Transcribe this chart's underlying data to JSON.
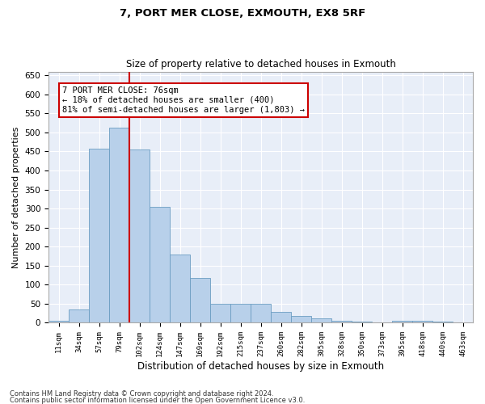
{
  "title1": "7, PORT MER CLOSE, EXMOUTH, EX8 5RF",
  "title2": "Size of property relative to detached houses in Exmouth",
  "xlabel": "Distribution of detached houses by size in Exmouth",
  "ylabel": "Number of detached properties",
  "categories": [
    "11sqm",
    "34sqm",
    "57sqm",
    "79sqm",
    "102sqm",
    "124sqm",
    "147sqm",
    "169sqm",
    "192sqm",
    "215sqm",
    "237sqm",
    "260sqm",
    "282sqm",
    "305sqm",
    "328sqm",
    "350sqm",
    "373sqm",
    "395sqm",
    "418sqm",
    "440sqm",
    "463sqm"
  ],
  "values": [
    5,
    35,
    458,
    512,
    455,
    305,
    180,
    118,
    50,
    50,
    50,
    28,
    18,
    12,
    5,
    3,
    0,
    5,
    5,
    3,
    2
  ],
  "bar_color": "#b8d0ea",
  "bar_edge_color": "#6b9dc2",
  "bg_color": "#e8eef8",
  "grid_color": "#ffffff",
  "vline_x_index": 3,
  "vline_color": "#cc0000",
  "annotation_text": "7 PORT MER CLOSE: 76sqm\n← 18% of detached houses are smaller (400)\n81% of semi-detached houses are larger (1,803) →",
  "annotation_box_color": "#ffffff",
  "annotation_edge_color": "#cc0000",
  "footer1": "Contains HM Land Registry data © Crown copyright and database right 2024.",
  "footer2": "Contains public sector information licensed under the Open Government Licence v3.0.",
  "ylim": [
    0,
    660
  ],
  "yticks": [
    0,
    50,
    100,
    150,
    200,
    250,
    300,
    350,
    400,
    450,
    500,
    550,
    600,
    650
  ]
}
